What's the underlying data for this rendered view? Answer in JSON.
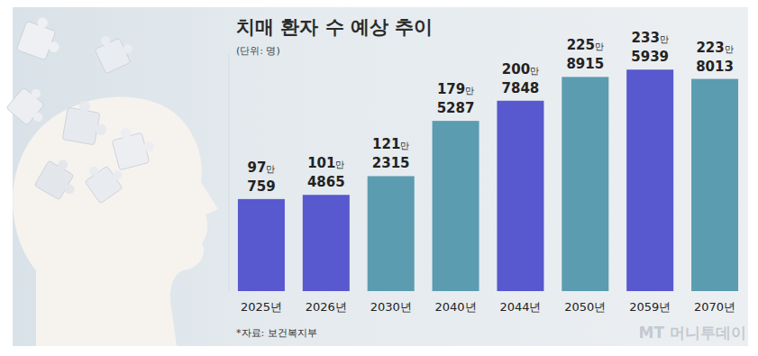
{
  "chart_data": {
    "type": "bar",
    "title": "치매 환자 수 예상 추이",
    "subtitle": "(단위: 명)",
    "source": "*자료: 보건복지부",
    "watermark": "MT 머니투데이",
    "categories": [
      "2025년",
      "2026년",
      "2030년",
      "2040년",
      "2044년",
      "2050년",
      "2059년",
      "2070년"
    ],
    "values": [
      970759,
      1014865,
      1212315,
      1795287,
      2007848,
      2258915,
      2335939,
      2238013
    ],
    "value_labels": [
      "97만 759",
      "101만 4865",
      "121만 2315",
      "179만 5287",
      "200만 7848",
      "225만 8915",
      "233만 5939",
      "223만 8013"
    ],
    "colors": [
      "#5858cf",
      "#5858cf",
      "#5b9cb0",
      "#5b9cb0",
      "#5858cf",
      "#5b9cb0",
      "#5858cf",
      "#5b9cb0"
    ],
    "ylim": [
      0,
      2500000
    ],
    "data_labels": true,
    "tick_labels": "x",
    "grid": false
  }
}
